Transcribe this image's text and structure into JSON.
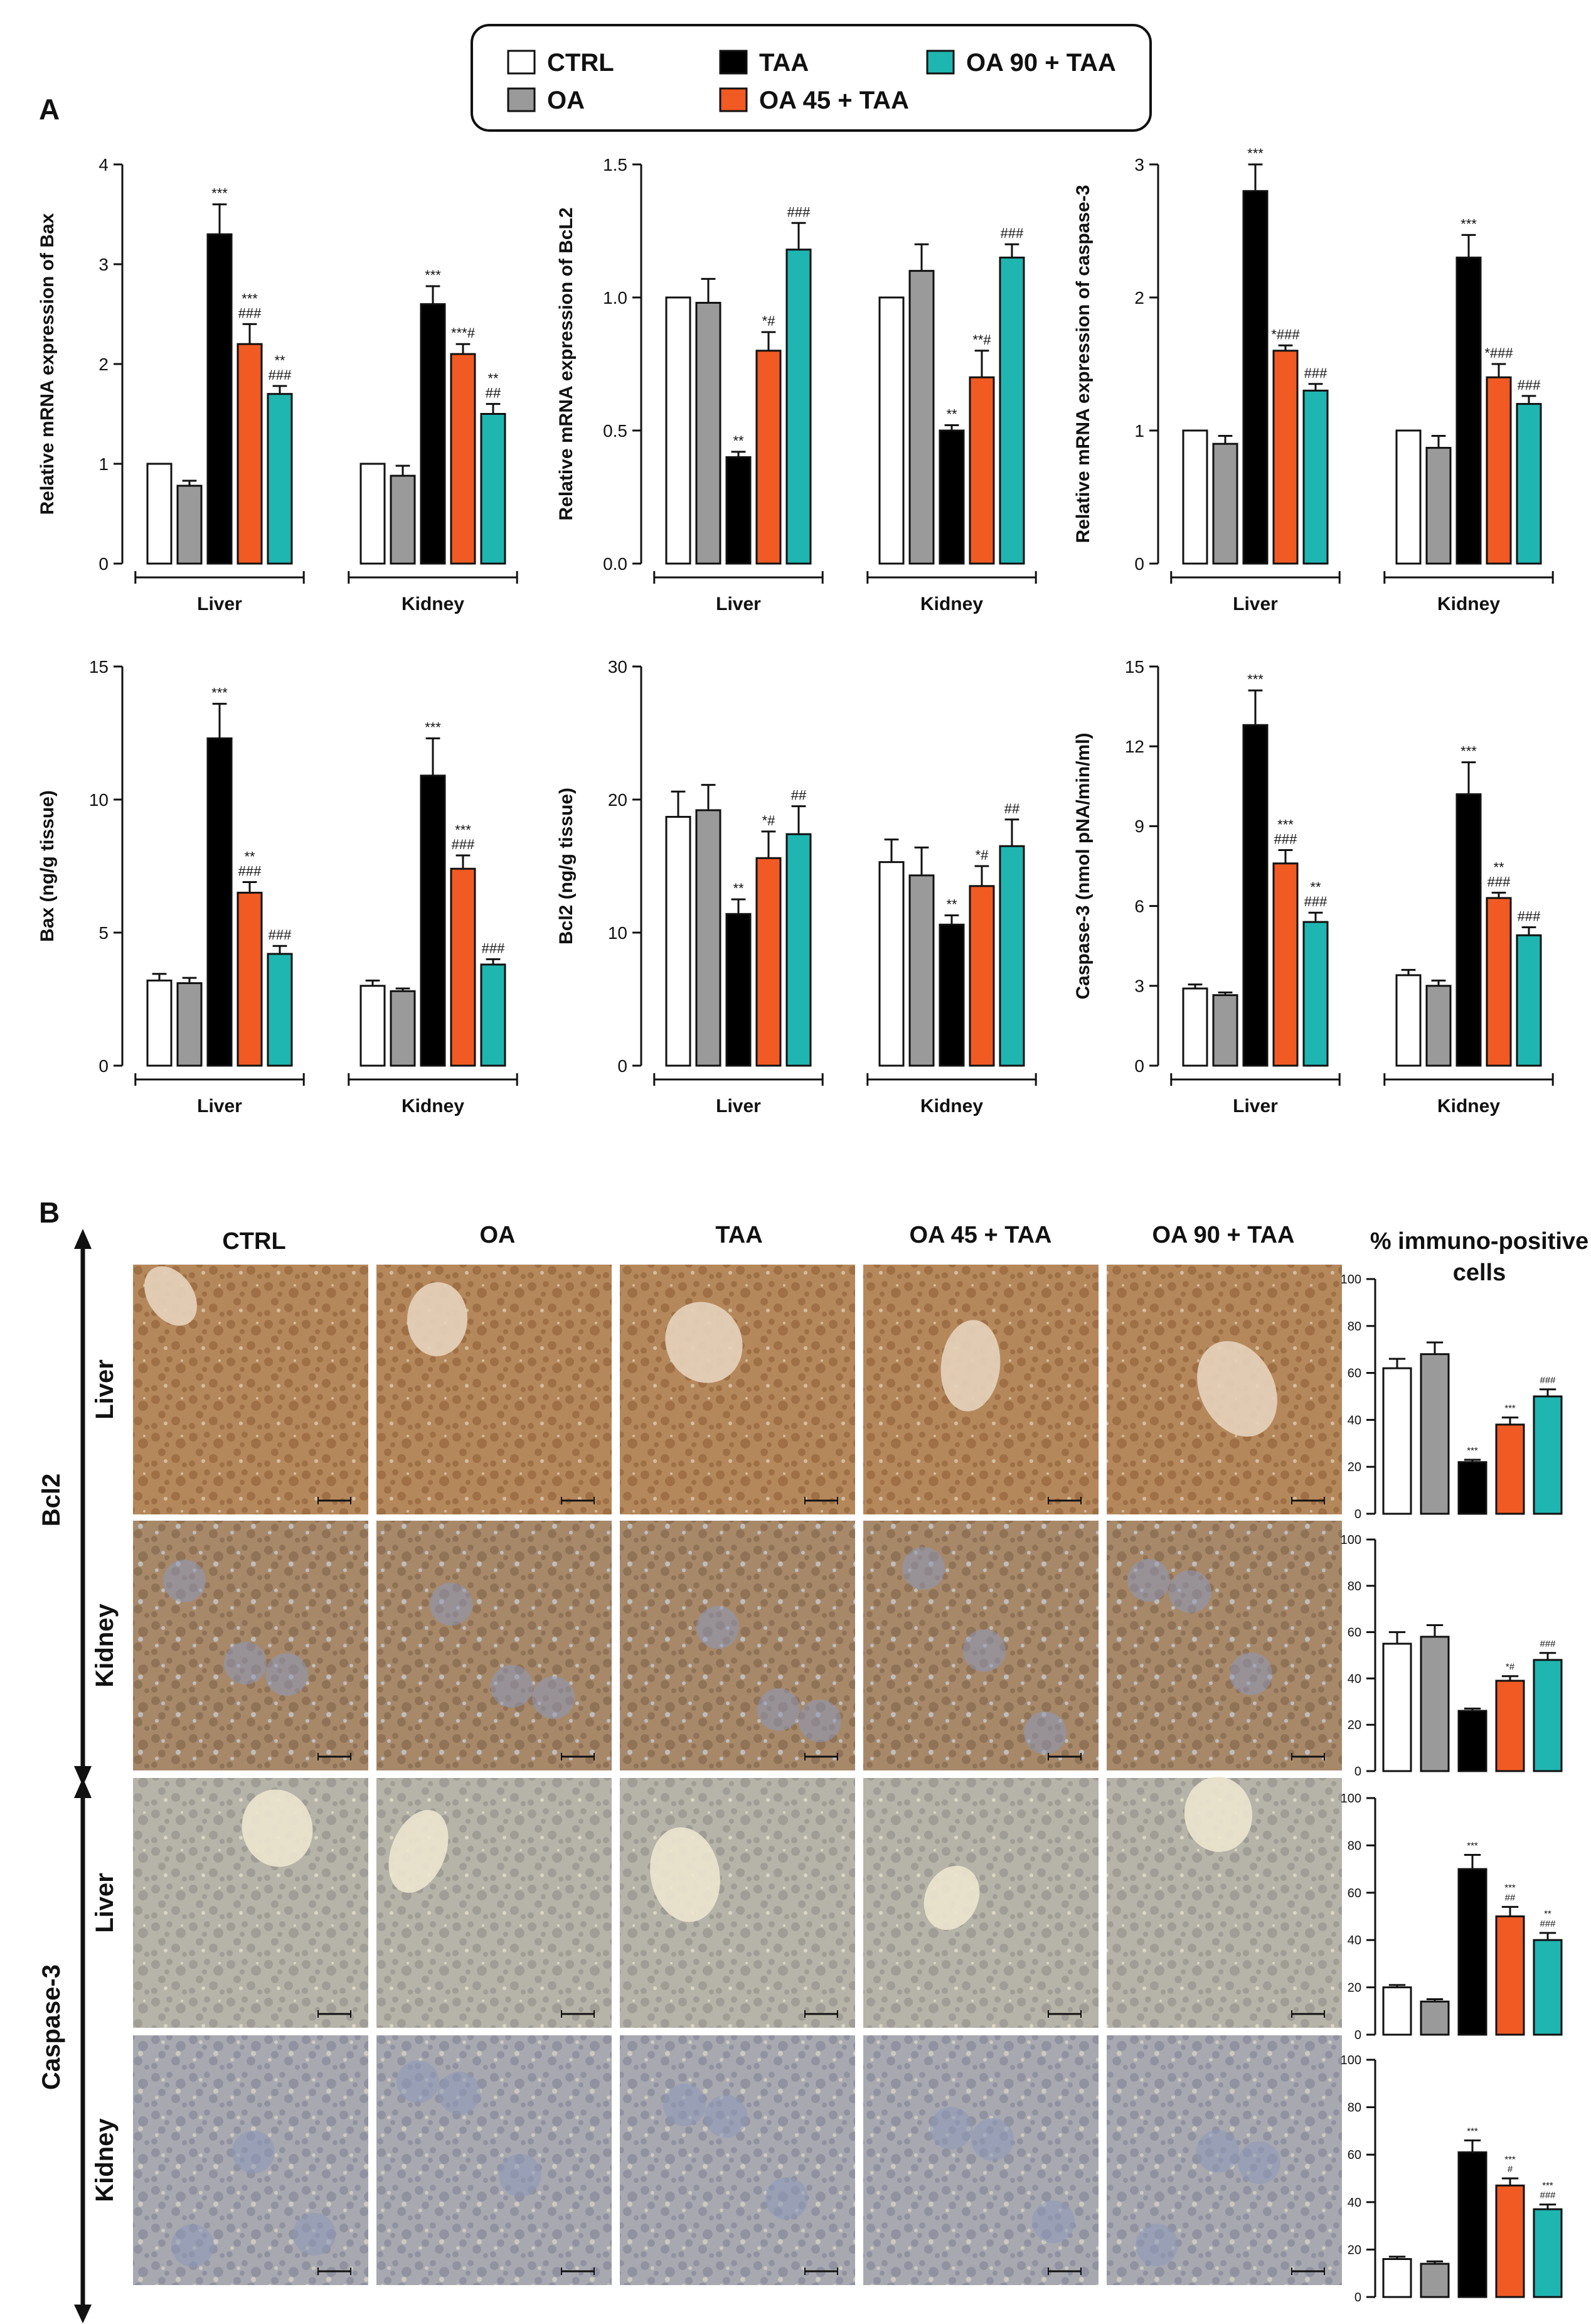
{
  "legend": {
    "items": [
      {
        "label": "CTRL",
        "color": "#ffffff"
      },
      {
        "label": "TAA",
        "color": "#000000"
      },
      {
        "label": "OA 90 + TAA",
        "color": "#1fb5b1"
      },
      {
        "label": "OA",
        "color": "#9a9a9a"
      },
      {
        "label": "OA 45 + TAA",
        "color": "#f15a22"
      }
    ]
  },
  "panel_labels": {
    "a": "A",
    "b": "B"
  },
  "groups": [
    "CTRL",
    "OA",
    "TAA",
    "OA 45 + TAA",
    "OA 90 + TAA"
  ],
  "colors": [
    "#ffffff",
    "#9a9a9a",
    "#000000",
    "#f15a22",
    "#1fb5b1"
  ],
  "ihc": {
    "column_headers": [
      "CTRL",
      "OA",
      "TAA",
      "OA 45 + TAA",
      "OA 90 + TAA"
    ],
    "percent_header_line1": "% immuno-positive",
    "percent_header_line2": "cells",
    "markers": [
      "Bcl2",
      "Caspase-3"
    ],
    "tissues": [
      "Liver",
      "Kidney",
      "Liver",
      "Kidney"
    ],
    "tissue_tints": [
      {
        "bg": "#b5885c",
        "spot": "#8c5a32",
        "pale": "#e6d3bd"
      },
      {
        "bg": "#a7896a",
        "spot": "#7d5e45",
        "pale": "#cbd3e0"
      },
      {
        "bg": "#b6b3a8",
        "spot": "#8c8a85",
        "pale": "#ece5cf"
      },
      {
        "bg": "#a8a9b0",
        "spot": "#7b7f93",
        "pale": "#ddd8c8"
      }
    ]
  },
  "chart_data": [
    {
      "type": "bar",
      "ylabel": "Relative mRNA expression of Bax",
      "categories": [
        "Liver",
        "Kidney"
      ],
      "ylim": [
        0,
        4
      ],
      "yticks": [
        "0",
        "1",
        "2",
        "3",
        "4"
      ],
      "series": [
        {
          "name": "CTRL",
          "values": [
            1.0,
            1.0
          ],
          "errors": [
            0,
            0
          ],
          "labels": [
            "",
            ""
          ]
        },
        {
          "name": "OA",
          "values": [
            0.78,
            0.88
          ],
          "errors": [
            0.05,
            0.1
          ],
          "labels": [
            "",
            ""
          ]
        },
        {
          "name": "TAA",
          "values": [
            3.3,
            2.6
          ],
          "errors": [
            0.3,
            0.18
          ],
          "labels": [
            "***",
            "***"
          ]
        },
        {
          "name": "OA 45 + TAA",
          "values": [
            2.2,
            2.1
          ],
          "errors": [
            0.2,
            0.1
          ],
          "labels": [
            "***\n###",
            "***#"
          ]
        },
        {
          "name": "OA 90 + TAA",
          "values": [
            1.7,
            1.5
          ],
          "errors": [
            0.08,
            0.1
          ],
          "labels": [
            "**\n###",
            "**\n##"
          ]
        }
      ]
    },
    {
      "type": "bar",
      "ylabel": "Relative mRNA expression of BcL2",
      "categories": [
        "Liver",
        "Kidney"
      ],
      "ylim": [
        0,
        1.5
      ],
      "yticks": [
        "0.0",
        "0.5",
        "1.0",
        "1.5"
      ],
      "series": [
        {
          "name": "CTRL",
          "values": [
            1.0,
            1.0
          ],
          "errors": [
            0,
            0
          ],
          "labels": [
            "",
            ""
          ]
        },
        {
          "name": "OA",
          "values": [
            0.98,
            1.1
          ],
          "errors": [
            0.09,
            0.1
          ],
          "labels": [
            "",
            ""
          ]
        },
        {
          "name": "TAA",
          "values": [
            0.4,
            0.5
          ],
          "errors": [
            0.02,
            0.02
          ],
          "labels": [
            "**",
            "**"
          ]
        },
        {
          "name": "OA 45 + TAA",
          "values": [
            0.8,
            0.7
          ],
          "errors": [
            0.07,
            0.1
          ],
          "labels": [
            "*#",
            "**#"
          ]
        },
        {
          "name": "OA 90 + TAA",
          "values": [
            1.18,
            1.15
          ],
          "errors": [
            0.1,
            0.05
          ],
          "labels": [
            "###",
            "###"
          ]
        }
      ]
    },
    {
      "type": "bar",
      "ylabel": "Relative mRNA expression of caspase-3",
      "categories": [
        "Liver",
        "Kidney"
      ],
      "ylim": [
        0,
        3
      ],
      "yticks": [
        "0",
        "1",
        "2",
        "3"
      ],
      "series": [
        {
          "name": "CTRL",
          "values": [
            1.0,
            1.0
          ],
          "errors": [
            0,
            0
          ],
          "labels": [
            "",
            ""
          ]
        },
        {
          "name": "OA",
          "values": [
            0.9,
            0.87
          ],
          "errors": [
            0.06,
            0.09
          ],
          "labels": [
            "",
            ""
          ]
        },
        {
          "name": "TAA",
          "values": [
            2.8,
            2.3
          ],
          "errors": [
            0.2,
            0.17
          ],
          "labels": [
            "***",
            "***"
          ]
        },
        {
          "name": "OA 45 + TAA",
          "values": [
            1.6,
            1.4
          ],
          "errors": [
            0.04,
            0.1
          ],
          "labels": [
            "*###",
            "*###"
          ]
        },
        {
          "name": "OA 90 + TAA",
          "values": [
            1.3,
            1.2
          ],
          "errors": [
            0.05,
            0.06
          ],
          "labels": [
            "###",
            "###"
          ]
        }
      ]
    },
    {
      "type": "bar",
      "ylabel": "Bax (ng/g tissue)",
      "categories": [
        "Liver",
        "Kidney"
      ],
      "ylim": [
        0,
        15
      ],
      "yticks": [
        "0",
        "5",
        "10",
        "15"
      ],
      "series": [
        {
          "name": "CTRL",
          "values": [
            3.2,
            3.0
          ],
          "errors": [
            0.25,
            0.2
          ],
          "labels": [
            "",
            ""
          ]
        },
        {
          "name": "OA",
          "values": [
            3.1,
            2.8
          ],
          "errors": [
            0.2,
            0.1
          ],
          "labels": [
            "",
            ""
          ]
        },
        {
          "name": "TAA",
          "values": [
            12.3,
            10.9
          ],
          "errors": [
            1.3,
            1.4
          ],
          "labels": [
            "***",
            "***"
          ]
        },
        {
          "name": "OA 45 + TAA",
          "values": [
            6.5,
            7.4
          ],
          "errors": [
            0.4,
            0.5
          ],
          "labels": [
            "**\n###",
            "***\n###"
          ]
        },
        {
          "name": "OA 90 + TAA",
          "values": [
            4.2,
            3.8
          ],
          "errors": [
            0.3,
            0.2
          ],
          "labels": [
            "###",
            "###"
          ]
        }
      ]
    },
    {
      "type": "bar",
      "ylabel": "Bcl2 (ng/g tissue)",
      "categories": [
        "Liver",
        "Kidney"
      ],
      "ylim": [
        0,
        30
      ],
      "yticks": [
        "0",
        "10",
        "20",
        "30"
      ],
      "series": [
        {
          "name": "CTRL",
          "values": [
            18.7,
            15.3
          ],
          "errors": [
            1.9,
            1.7
          ],
          "labels": [
            "",
            ""
          ]
        },
        {
          "name": "OA",
          "values": [
            19.2,
            14.3
          ],
          "errors": [
            1.9,
            2.1
          ],
          "labels": [
            "",
            ""
          ]
        },
        {
          "name": "TAA",
          "values": [
            11.4,
            10.6
          ],
          "errors": [
            1.1,
            0.7
          ],
          "labels": [
            "**",
            "**"
          ]
        },
        {
          "name": "OA 45 + TAA",
          "values": [
            15.6,
            13.5
          ],
          "errors": [
            2.0,
            1.5
          ],
          "labels": [
            "*#",
            "*#"
          ]
        },
        {
          "name": "OA 90 + TAA",
          "values": [
            17.4,
            16.5
          ],
          "errors": [
            2.1,
            2.0
          ],
          "labels": [
            "##",
            "##"
          ]
        }
      ]
    },
    {
      "type": "bar",
      "ylabel": "Caspase-3 (nmol pNA/min/ml)",
      "categories": [
        "Liver",
        "Kidney"
      ],
      "ylim": [
        0,
        15
      ],
      "yticks": [
        "0",
        "3",
        "6",
        "9",
        "12",
        "15"
      ],
      "series": [
        {
          "name": "CTRL",
          "values": [
            2.9,
            3.4
          ],
          "errors": [
            0.15,
            0.2
          ],
          "labels": [
            "",
            ""
          ]
        },
        {
          "name": "OA",
          "values": [
            2.65,
            3.0
          ],
          "errors": [
            0.1,
            0.2
          ],
          "labels": [
            "",
            ""
          ]
        },
        {
          "name": "TAA",
          "values": [
            12.8,
            10.2
          ],
          "errors": [
            1.3,
            1.2
          ],
          "labels": [
            "***",
            "***"
          ]
        },
        {
          "name": "OA 45 + TAA",
          "values": [
            7.6,
            6.3
          ],
          "errors": [
            0.5,
            0.2
          ],
          "labels": [
            "***\n###",
            "**\n###"
          ]
        },
        {
          "name": "OA 90 + TAA",
          "values": [
            5.4,
            4.9
          ],
          "errors": [
            0.35,
            0.3
          ],
          "labels": [
            "**\n###",
            "###"
          ]
        }
      ]
    },
    {
      "type": "bar",
      "title": "Bcl2 Liver",
      "ylim": [
        0,
        100
      ],
      "yticks": [
        "0",
        "20",
        "40",
        "60",
        "80",
        "100"
      ],
      "series": [
        {
          "name": "CTRL",
          "values": [
            62
          ],
          "errors": [
            4
          ],
          "labels": [
            ""
          ]
        },
        {
          "name": "OA",
          "values": [
            68
          ],
          "errors": [
            5
          ],
          "labels": [
            ""
          ]
        },
        {
          "name": "TAA",
          "values": [
            22
          ],
          "errors": [
            1
          ],
          "labels": [
            "***"
          ]
        },
        {
          "name": "OA 45 + TAA",
          "values": [
            38
          ],
          "errors": [
            3
          ],
          "labels": [
            "***"
          ]
        },
        {
          "name": "OA 90 + TAA",
          "values": [
            50
          ],
          "errors": [
            3
          ],
          "labels": [
            "###"
          ]
        }
      ]
    },
    {
      "type": "bar",
      "title": "Bcl2 Kidney",
      "ylim": [
        0,
        100
      ],
      "yticks": [
        "0",
        "20",
        "40",
        "60",
        "80",
        "100"
      ],
      "series": [
        {
          "name": "CTRL",
          "values": [
            55
          ],
          "errors": [
            5
          ],
          "labels": [
            ""
          ]
        },
        {
          "name": "OA",
          "values": [
            58
          ],
          "errors": [
            5
          ],
          "labels": [
            ""
          ]
        },
        {
          "name": "TAA",
          "values": [
            26
          ],
          "errors": [
            1
          ],
          "labels": [
            ""
          ]
        },
        {
          "name": "OA 45 + TAA",
          "values": [
            39
          ],
          "errors": [
            2
          ],
          "labels": [
            "*#"
          ]
        },
        {
          "name": "OA 90 + TAA",
          "values": [
            48
          ],
          "errors": [
            3
          ],
          "labels": [
            "###"
          ]
        }
      ]
    },
    {
      "type": "bar",
      "title": "Caspase-3 Liver",
      "ylim": [
        0,
        100
      ],
      "yticks": [
        "0",
        "20",
        "40",
        "60",
        "80",
        "100"
      ],
      "series": [
        {
          "name": "CTRL",
          "values": [
            20
          ],
          "errors": [
            1
          ],
          "labels": [
            ""
          ]
        },
        {
          "name": "OA",
          "values": [
            14
          ],
          "errors": [
            1
          ],
          "labels": [
            ""
          ]
        },
        {
          "name": "TAA",
          "values": [
            70
          ],
          "errors": [
            6
          ],
          "labels": [
            "***"
          ]
        },
        {
          "name": "OA 45 + TAA",
          "values": [
            50
          ],
          "errors": [
            4
          ],
          "labels": [
            "***\n##"
          ]
        },
        {
          "name": "OA 90 + TAA",
          "values": [
            40
          ],
          "errors": [
            3
          ],
          "labels": [
            "**\n###"
          ]
        }
      ]
    },
    {
      "type": "bar",
      "title": "Caspase-3 Kidney",
      "ylim": [
        0,
        100
      ],
      "yticks": [
        "0",
        "20",
        "40",
        "60",
        "80",
        "100"
      ],
      "series": [
        {
          "name": "CTRL",
          "values": [
            16
          ],
          "errors": [
            1
          ],
          "labels": [
            ""
          ]
        },
        {
          "name": "OA",
          "values": [
            14
          ],
          "errors": [
            1
          ],
          "labels": [
            ""
          ]
        },
        {
          "name": "TAA",
          "values": [
            61
          ],
          "errors": [
            5
          ],
          "labels": [
            "***"
          ]
        },
        {
          "name": "OA 45 + TAA",
          "values": [
            47
          ],
          "errors": [
            3
          ],
          "labels": [
            "***\n#"
          ]
        },
        {
          "name": "OA 90 + TAA",
          "values": [
            37
          ],
          "errors": [
            2
          ],
          "labels": [
            "***\n###"
          ]
        }
      ]
    }
  ]
}
